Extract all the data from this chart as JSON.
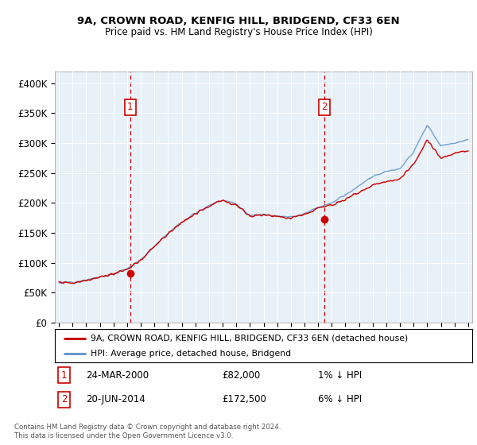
{
  "title1": "9A, CROWN ROAD, KENFIG HILL, BRIDGEND, CF33 6EN",
  "title2": "Price paid vs. HM Land Registry's House Price Index (HPI)",
  "ylim": [
    0,
    420000
  ],
  "yticks": [
    0,
    50000,
    100000,
    150000,
    200000,
    250000,
    300000,
    350000,
    400000
  ],
  "ytick_labels": [
    "£0",
    "£50K",
    "£100K",
    "£150K",
    "£200K",
    "£250K",
    "£300K",
    "£350K",
    "£400K"
  ],
  "xlim_start": 1994.7,
  "xlim_end": 2025.3,
  "bg_color": "#e8f0f8",
  "line1_color": "#cc0000",
  "line2_color": "#6699cc",
  "legend_label1": "9A, CROWN ROAD, KENFIG HILL, BRIDGEND, CF33 6EN (detached house)",
  "legend_label2": "HPI: Average price, detached house, Bridgend",
  "marker1_date": 2000.22,
  "marker1_value": 82000,
  "marker1_label": "1",
  "marker2_date": 2014.46,
  "marker2_value": 172500,
  "marker2_label": "2",
  "footnote": "Contains HM Land Registry data © Crown copyright and database right 2024.\nThis data is licensed under the Open Government Licence v3.0.",
  "xtick_years": [
    1995,
    1996,
    1997,
    1998,
    1999,
    2000,
    2001,
    2002,
    2003,
    2004,
    2005,
    2006,
    2007,
    2008,
    2009,
    2010,
    2011,
    2012,
    2013,
    2014,
    2015,
    2016,
    2017,
    2018,
    2019,
    2020,
    2021,
    2022,
    2023,
    2024,
    2025
  ]
}
